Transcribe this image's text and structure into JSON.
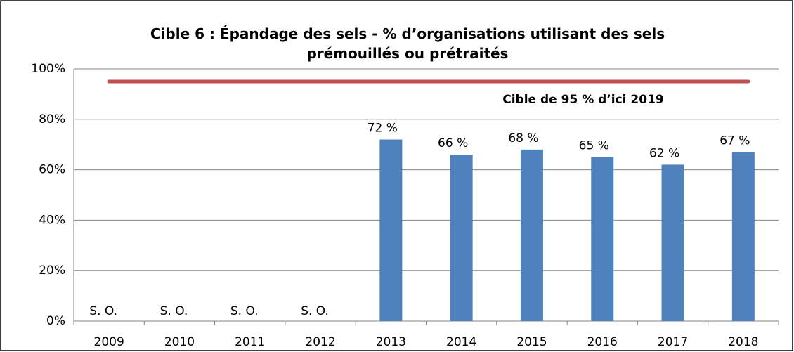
{
  "chart_data": {
    "type": "bar",
    "title": "Cible 6 : Épandage des sels - % d’organisations utilisant des sels prémouillés ou prétraités",
    "categories": [
      "2009",
      "2010",
      "2011",
      "2012",
      "2013",
      "2014",
      "2015",
      "2016",
      "2017",
      "2018"
    ],
    "values": [
      null,
      null,
      null,
      null,
      72,
      66,
      68,
      65,
      62,
      67
    ],
    "value_labels": [
      "S. O.",
      "S. O.",
      "S. O.",
      "S. O.",
      "72 %",
      "66 %",
      "68 %",
      "65 %",
      "62 %",
      "67 %"
    ],
    "color": "#4f81bd",
    "ylim": [
      0,
      100
    ],
    "yticks": [
      {
        "value": 0,
        "label": "0%"
      },
      {
        "value": 20,
        "label": "20%"
      },
      {
        "value": 40,
        "label": "40%"
      },
      {
        "value": 60,
        "label": "60%"
      },
      {
        "value": 80,
        "label": "80%"
      },
      {
        "value": 100,
        "label": "100%"
      }
    ],
    "grid": true,
    "target": {
      "value": 95,
      "label": "Cible de 95 % d’ici 2019",
      "color": "#c0504d"
    }
  }
}
